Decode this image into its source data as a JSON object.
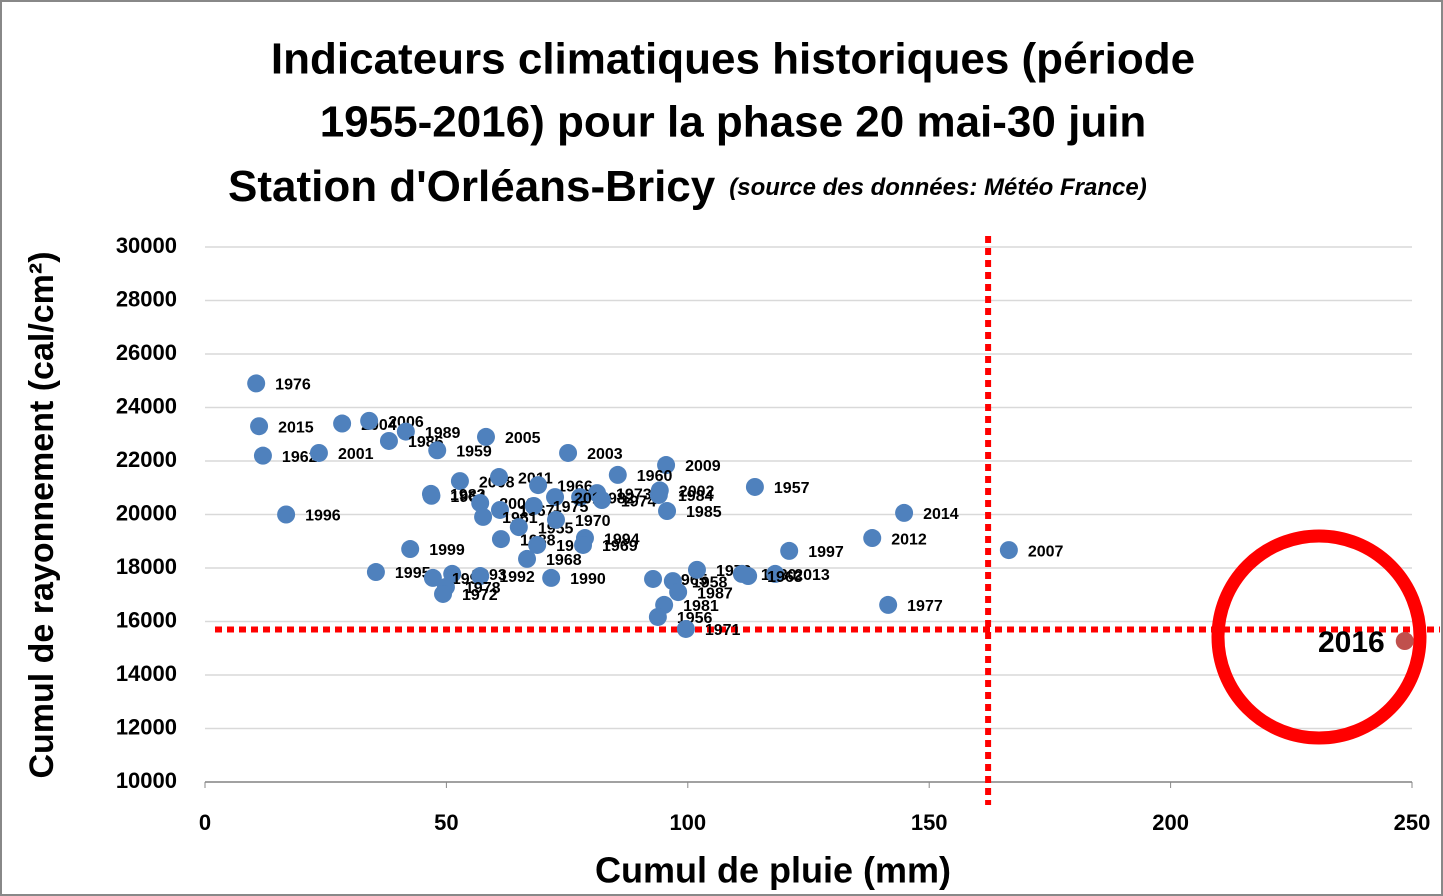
{
  "chart_data": {
    "type": "scatter",
    "title": [
      "Indicateurs climatiques historiques (période",
      "1955-2016) pour la phase 20 mai-30 juin",
      "Station d'Orléans-Bricy"
    ],
    "source": "(source des données: Météo France)",
    "x_label": "Cumul de pluie (mm)",
    "y_label": "Cumul de rayonnement (cal/cm²)",
    "xlim": [
      0,
      250
    ],
    "xticks": [
      0,
      50,
      100,
      150,
      200,
      250
    ],
    "ylim": [
      10000,
      30000
    ],
    "yticks": [
      10000,
      12000,
      14000,
      16000,
      18000,
      20000,
      22000,
      24000,
      26000,
      28000,
      30000
    ],
    "grid": true,
    "color": "#4f81bd",
    "labels": [
      "1976",
      "2015",
      "1962",
      "2001",
      "1996",
      "2004",
      "2006",
      "1989",
      "1986",
      "1959",
      "2005",
      "2003",
      "2009",
      "1960",
      "1957",
      "2014",
      "2012",
      "2007",
      "1997",
      "1977",
      "2008",
      "2011",
      "1966",
      "1983",
      "1964",
      "2000",
      "2002",
      "1973",
      "1982",
      "2010",
      "1974",
      "1984",
      "1985",
      "1967",
      "1975",
      "1961",
      "1955",
      "1970",
      "1988",
      "1998",
      "1994",
      "1969",
      "1968",
      "1999",
      "1995",
      "1993",
      "1991",
      "1992",
      "1978",
      "1972",
      "1990",
      "1965",
      "1958",
      "1987",
      "1979",
      "1980",
      "2013",
      "1963",
      "1981",
      "1956",
      "1971"
    ],
    "x": [
      10.6,
      11.2,
      12.0,
      23.6,
      16.8,
      28.4,
      34.0,
      41.6,
      38.1,
      48.1,
      58.2,
      75.2,
      95.5,
      85.5,
      113.9,
      144.8,
      138.2,
      166.5,
      121.0,
      141.5,
      52.8,
      60.9,
      69.0,
      46.8,
      46.9,
      57.0,
      94.2,
      81.2,
      77.7,
      72.5,
      82.2,
      94.0,
      95.7,
      61.1,
      68.1,
      57.6,
      65.0,
      72.7,
      61.3,
      68.8,
      78.7,
      78.3,
      66.7,
      42.5,
      35.4,
      51.2,
      47.2,
      57.0,
      49.9,
      49.3,
      71.7,
      92.8,
      96.9,
      98.0,
      101.9,
      111.2,
      118.1,
      112.5,
      95.1,
      93.8,
      99.6
    ],
    "y": [
      24900,
      23300,
      22200,
      22300,
      20000,
      23400,
      23500,
      23100,
      22750,
      22400,
      22900,
      22300,
      21850,
      21480,
      21030,
      20060,
      19120,
      18670,
      18640,
      16620,
      21250,
      21400,
      21100,
      20770,
      20700,
      20430,
      20900,
      20800,
      20650,
      20650,
      20540,
      20730,
      20130,
      20170,
      20320,
      19910,
      19530,
      19800,
      19080,
      18860,
      19120,
      18860,
      18340,
      18710,
      17850,
      17780,
      17630,
      17700,
      17290,
      17030,
      17630,
      17590,
      17510,
      17100,
      17930,
      17780,
      17780,
      17700,
      16620,
      16170,
      15720
    ],
    "highlight": {
      "label": "2016",
      "x": 248.5,
      "y": 15270,
      "color": "#c0504d"
    },
    "reference_lines": {
      "x": 162.2,
      "y": 15700,
      "color": "#ff0000"
    }
  }
}
